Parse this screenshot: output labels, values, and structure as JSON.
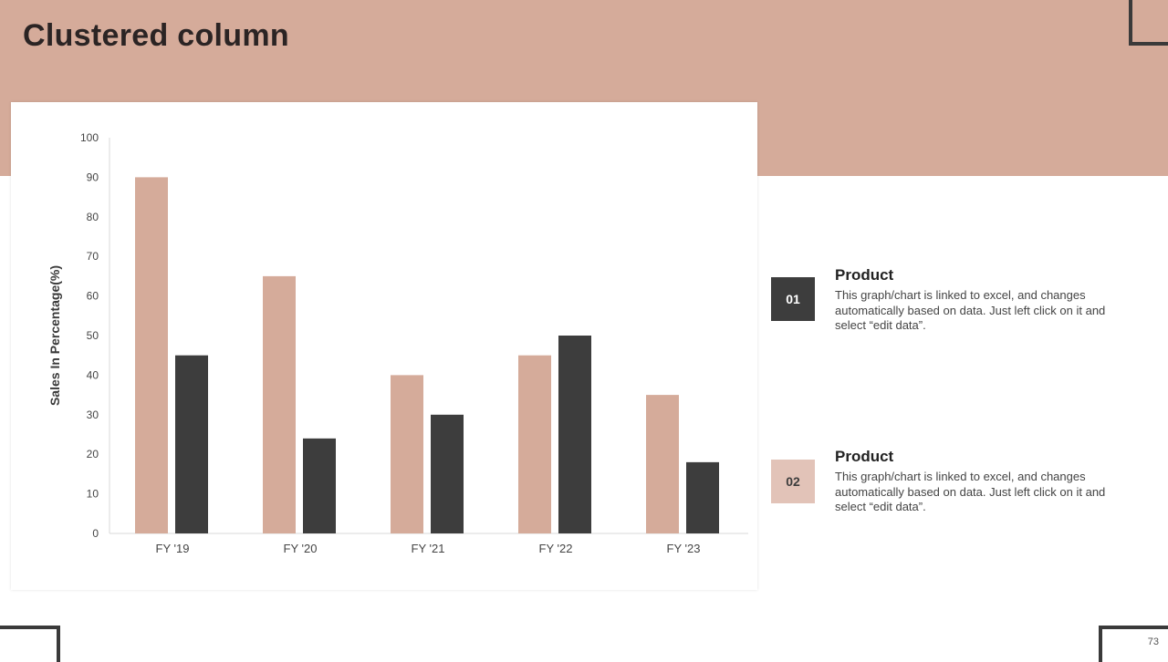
{
  "page": {
    "title": "Clustered column",
    "page_number": "73"
  },
  "colors": {
    "band": "#d5ab9a",
    "series1": "#d5ab9a",
    "series2": "#3d3d3d",
    "legend_box_1": "#3d3d3d",
    "legend_box_2": "#e2c3b8"
  },
  "legend": [
    {
      "number": "01",
      "heading": "Product",
      "description": "This graph/chart is linked to excel, and changes automatically based on data. Just left click on it and select “edit data”."
    },
    {
      "number": "02",
      "heading": "Product",
      "description": "This graph/chart is linked to excel, and changes automatically based on data. Just left click on it and select “edit data”."
    }
  ],
  "chart_data": {
    "type": "bar",
    "categories": [
      "FY '19",
      "FY '20",
      "FY '21",
      "FY '22",
      "FY '23"
    ],
    "series": [
      {
        "values": [
          90,
          65,
          40,
          45,
          35
        ],
        "color": "#d5ab9a"
      },
      {
        "values": [
          45,
          24,
          30,
          50,
          18
        ],
        "color": "#3d3d3d"
      }
    ],
    "ylabel": "Sales In Percentage(%)",
    "xlabel": "",
    "ylim": [
      0,
      100
    ],
    "yticks": [
      0,
      10,
      20,
      30,
      40,
      50,
      60,
      70,
      80,
      90,
      100
    ],
    "grid": false,
    "legend": "none"
  }
}
